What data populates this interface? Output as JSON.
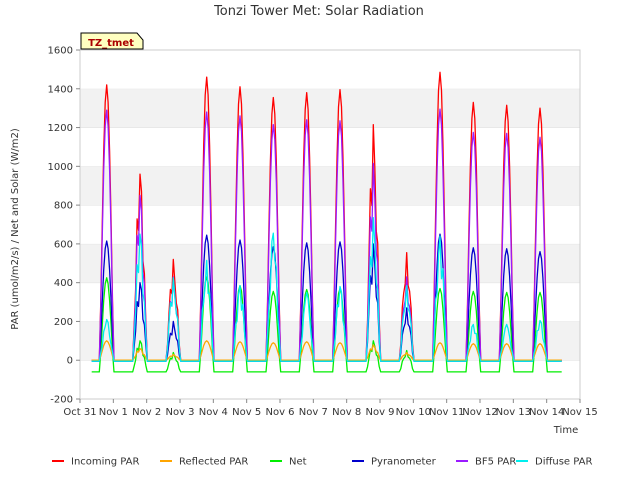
{
  "chart_data": {
    "type": "line",
    "title": "Tonzi Tower Met: Solar Radiation",
    "xlabel": "Time",
    "ylabel": "PAR (umol/m2/s) / Net and Solar (W/m2)",
    "site_label": "TZ_tmet",
    "xlim": [
      0,
      15
    ],
    "ylim": [
      -200,
      1600
    ],
    "yticks": [
      -200,
      0,
      200,
      400,
      600,
      800,
      1000,
      1200,
      1400,
      1600
    ],
    "xtick_positions": [
      0,
      1,
      2,
      3,
      4,
      5,
      6,
      7,
      8,
      9,
      10,
      11,
      12,
      13,
      14,
      15
    ],
    "xtick_labels": [
      "Oct 31",
      "Nov 1",
      "Nov 2",
      "Nov 3",
      "Nov 4",
      "Nov 5",
      "Nov 6",
      "Nov 7",
      "Nov 8",
      "Nov 9",
      "Nov 10",
      "Nov 11",
      "Nov 12",
      "Nov 13",
      "Nov 14",
      "Nov 15"
    ],
    "grid": "horizontal-bands",
    "legend_placement": "bottom",
    "days": [
      0,
      1,
      2,
      3,
      4,
      5,
      6,
      7,
      8,
      9,
      10,
      11,
      12,
      13
    ],
    "series": [
      {
        "name": "Incoming PAR",
        "color": "#ff0000",
        "night": 0,
        "peaks": [
          1420,
          960,
          520,
          1460,
          1410,
          1355,
          1380,
          1395,
          1215,
          555,
          1485,
          1330,
          1315,
          1300
        ]
      },
      {
        "name": "Reflected PAR",
        "color": "#ffa500",
        "night": 0,
        "peaks": [
          100,
          60,
          30,
          100,
          95,
          90,
          95,
          90,
          80,
          40,
          90,
          85,
          85,
          85
        ]
      },
      {
        "name": "Net",
        "color": "#00ee00",
        "night": -60,
        "peaks": [
          425,
          100,
          40,
          430,
          385,
          355,
          365,
          370,
          100,
          50,
          370,
          355,
          350,
          350
        ]
      },
      {
        "name": "Pyranometer",
        "color": "#0000cc",
        "night": -5,
        "peaks": [
          615,
          400,
          200,
          645,
          620,
          585,
          605,
          610,
          600,
          270,
          650,
          580,
          575,
          560
        ]
      },
      {
        "name": "BF5 PAR",
        "color": "#9a1bff",
        "night": 0,
        "peaks": [
          1290,
          850,
          430,
          1280,
          1260,
          1215,
          1240,
          1235,
          1015,
          430,
          1295,
          1175,
          1170,
          1150
        ]
      },
      {
        "name": "Diffuse PAR",
        "color": "#00eeee",
        "night": -5,
        "peaks": [
          210,
          650,
          425,
          515,
          385,
          655,
          350,
          380,
          735,
          385,
          640,
          185,
          185,
          205
        ]
      }
    ]
  }
}
